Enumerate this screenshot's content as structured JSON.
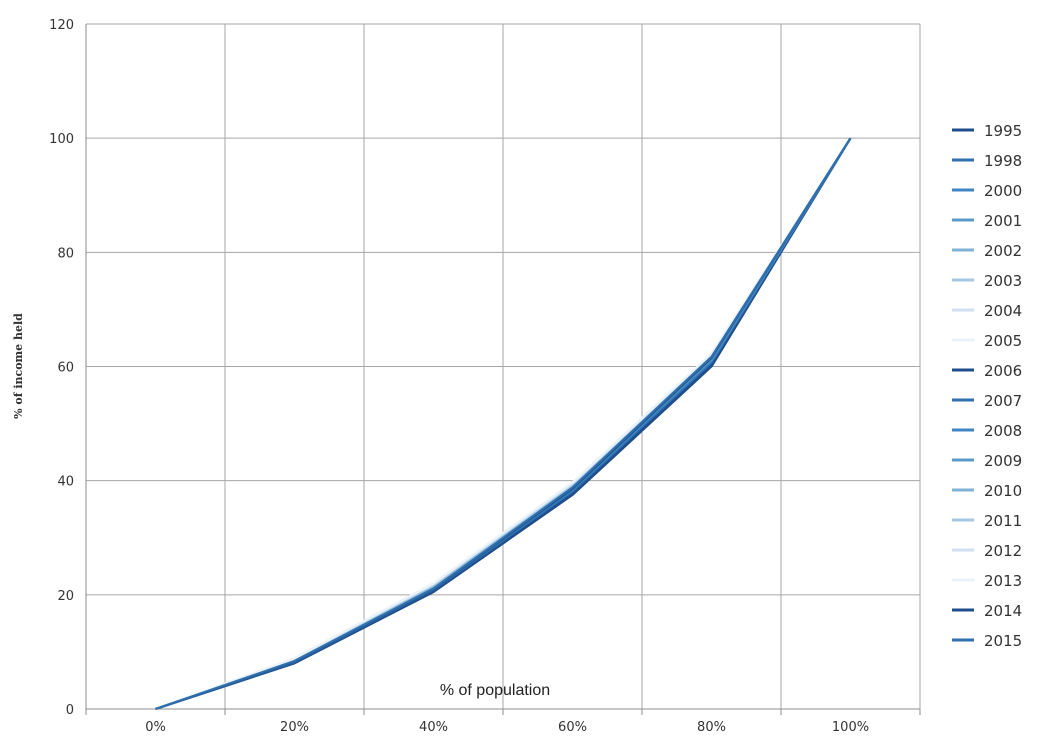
{
  "chart_data": {
    "type": "line",
    "title": "",
    "xlabel": "% of population",
    "ylabel": "% of income held",
    "categories": [
      "0%",
      "20%",
      "40%",
      "60%",
      "80%",
      "100%"
    ],
    "x": [
      0,
      20,
      40,
      60,
      80,
      100
    ],
    "ylim": [
      0,
      120
    ],
    "yticks": [
      "0",
      "20",
      "40",
      "60",
      "80",
      "100",
      "120"
    ],
    "grid": true,
    "legend_position": "right",
    "series": [
      {
        "name": "1995",
        "color": "#1f4e8c",
        "values": [
          0,
          8.0,
          20.5,
          37.5,
          60.0,
          100
        ]
      },
      {
        "name": "1998",
        "color": "#2e6fae",
        "values": [
          0,
          8.2,
          20.8,
          38.0,
          60.5,
          100
        ]
      },
      {
        "name": "2000",
        "color": "#3d85c2",
        "values": [
          0,
          8.3,
          21.0,
          38.3,
          61.0,
          100
        ]
      },
      {
        "name": "2001",
        "color": "#5d9acb",
        "values": [
          0,
          8.4,
          21.2,
          38.6,
          61.2,
          100
        ]
      },
      {
        "name": "2002",
        "color": "#7fb0d6",
        "values": [
          0,
          8.6,
          21.5,
          39.0,
          61.5,
          100
        ]
      },
      {
        "name": "2003",
        "color": "#a6c8e4",
        "values": [
          0,
          8.7,
          21.7,
          39.2,
          61.8,
          100
        ]
      },
      {
        "name": "2004",
        "color": "#cfe1f1",
        "values": [
          0,
          8.8,
          21.9,
          39.5,
          62.0,
          100
        ]
      },
      {
        "name": "2005",
        "color": "#eaf2fa",
        "values": [
          0,
          8.9,
          22.0,
          39.6,
          62.2,
          100
        ]
      },
      {
        "name": "2006",
        "color": "#1f4e8c",
        "values": [
          0,
          8.1,
          20.6,
          37.7,
          60.2,
          100
        ]
      },
      {
        "name": "2007",
        "color": "#2e6fae",
        "values": [
          0,
          8.2,
          20.9,
          38.1,
          60.7,
          100
        ]
      },
      {
        "name": "2008",
        "color": "#3d85c2",
        "values": [
          0,
          8.4,
          21.1,
          38.4,
          61.0,
          100
        ]
      },
      {
        "name": "2009",
        "color": "#5d9acb",
        "values": [
          0,
          8.5,
          21.3,
          38.8,
          61.3,
          100
        ]
      },
      {
        "name": "2010",
        "color": "#7fb0d6",
        "values": [
          0,
          8.6,
          21.5,
          39.0,
          61.6,
          100
        ]
      },
      {
        "name": "2011",
        "color": "#a6c8e4",
        "values": [
          0,
          8.7,
          21.7,
          39.3,
          61.9,
          100
        ]
      },
      {
        "name": "2012",
        "color": "#cfe1f1",
        "values": [
          0,
          8.8,
          21.9,
          39.5,
          62.1,
          100
        ]
      },
      {
        "name": "2013",
        "color": "#eaf2fa",
        "values": [
          0,
          8.9,
          22.0,
          39.7,
          62.3,
          100
        ]
      },
      {
        "name": "2014",
        "color": "#1f4e8c",
        "values": [
          0,
          8.3,
          21.0,
          38.6,
          61.5,
          100
        ]
      },
      {
        "name": "2015",
        "color": "#2e6fae",
        "values": [
          0,
          8.4,
          21.1,
          38.8,
          61.7,
          100
        ]
      }
    ]
  }
}
